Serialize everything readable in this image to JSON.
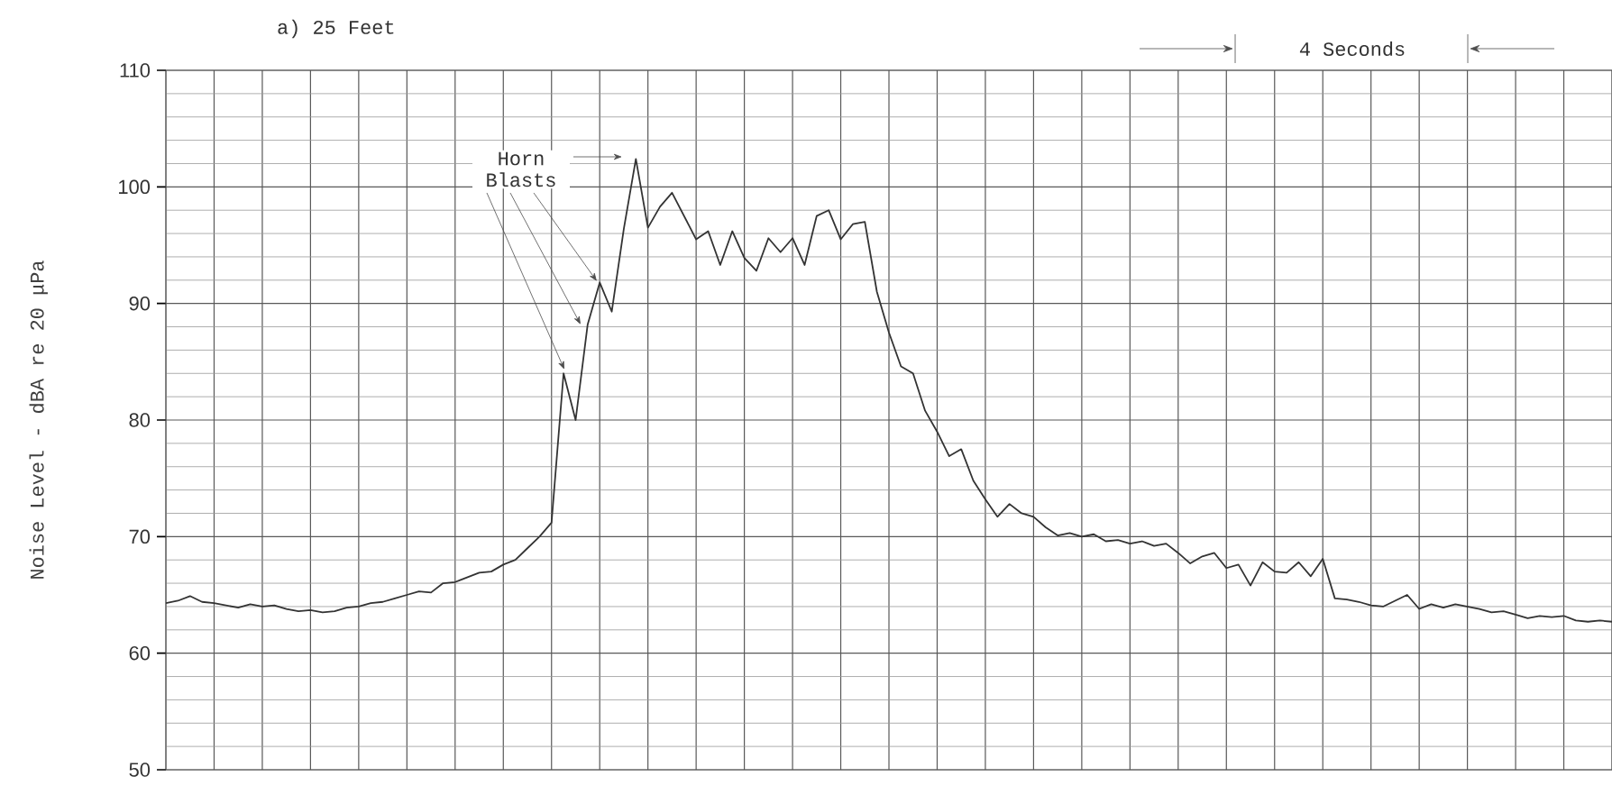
{
  "chart_data": {
    "type": "line",
    "title": "a) 25 Feet",
    "ylabel": "Noise Level - dBA re 20 μPa",
    "annotations": [
      "Horn Blasts",
      "4 Seconds"
    ],
    "categories": [
      null,
      null,
      null,
      null,
      null,
      null,
      null,
      null,
      null,
      null,
      null,
      null,
      null,
      null,
      null,
      null,
      null,
      null,
      null,
      null,
      null,
      null,
      null,
      null,
      null,
      null,
      null,
      null,
      null,
      null,
      null,
      null,
      null,
      null,
      null,
      null,
      null,
      null,
      null,
      null,
      null,
      null,
      null,
      null,
      null,
      null,
      null,
      null,
      null,
      null,
      null,
      null,
      null,
      null,
      null,
      null,
      null,
      null,
      null,
      null,
      null,
      null,
      null,
      null,
      null,
      null,
      null,
      null,
      null,
      null,
      null,
      null,
      null,
      null,
      null,
      null,
      null,
      null,
      null,
      null,
      null,
      null,
      null,
      null,
      null,
      null,
      null,
      null,
      null,
      null,
      null,
      null,
      null,
      null,
      null,
      null,
      null,
      null,
      null,
      null,
      null,
      null,
      null,
      null,
      null,
      null,
      null,
      null,
      null,
      null,
      null,
      null,
      null,
      null,
      null,
      null,
      null,
      null,
      null,
      null,
      null
    ],
    "values": [
      64.3,
      64.5,
      64.9,
      64.4,
      64.3,
      64.1,
      63.9,
      64.2,
      64.0,
      64.1,
      63.8,
      63.6,
      63.7,
      63.5,
      63.6,
      63.9,
      64.0,
      64.3,
      64.4,
      64.7,
      65.0,
      65.3,
      65.2,
      66.0,
      66.1,
      66.5,
      66.9,
      67.0,
      67.6,
      68.0,
      69.0,
      70.0,
      71.2,
      84.0,
      80.0,
      88.2,
      91.8,
      89.3,
      96.4,
      102.4,
      96.5,
      98.3,
      99.5,
      97.5,
      95.5,
      96.2,
      93.3,
      96.2,
      93.9,
      92.8,
      95.6,
      94.4,
      95.6,
      93.3,
      97.5,
      98.0,
      95.5,
      96.8,
      97.0,
      91.0,
      87.5,
      84.6,
      84.0,
      80.8,
      79.0,
      76.9,
      77.5,
      74.8,
      73.2,
      71.7,
      72.8,
      72.0,
      71.7,
      70.8,
      70.1,
      70.3,
      70.0,
      70.2,
      69.6,
      69.7,
      69.4,
      69.6,
      69.2,
      69.4,
      68.6,
      67.7,
      68.3,
      68.6,
      67.3,
      67.6,
      65.8,
      67.8,
      67.0,
      66.9,
      67.8,
      66.6,
      68.1,
      64.7,
      64.6,
      64.4,
      64.1,
      64.0,
      64.5,
      65.0,
      63.8,
      64.2,
      63.9,
      64.2,
      64.0,
      63.8,
      63.5,
      63.6,
      63.3,
      63.0,
      63.2,
      63.1,
      63.2,
      62.8,
      62.7,
      62.8,
      62.7
    ],
    "color": "#333333",
    "ylim": [
      50,
      110
    ],
    "yticks": [
      50,
      60,
      70,
      80,
      90,
      100,
      110
    ],
    "grid": true,
    "tick_labels": "y",
    "marker": "none",
    "line_style": "solid"
  }
}
